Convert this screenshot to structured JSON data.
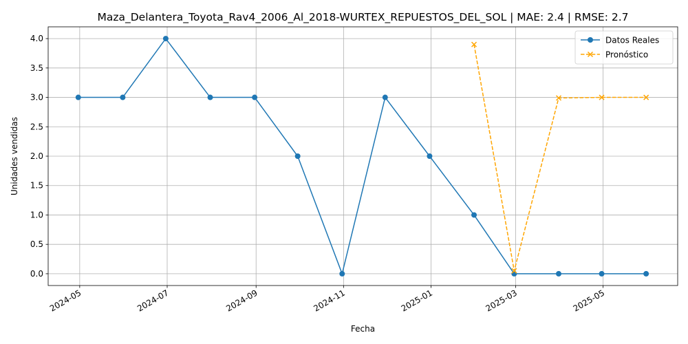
{
  "chart_data": {
    "type": "line",
    "title": "Maza_Delantera_Toyota_Rav4_2006_Al_2018-WURTEX_REPUESTOS_DEL_SOL | MAE: 2.4 | RMSE: 2.7",
    "xlabel": "Fecha",
    "ylabel": "Unidades vendidas",
    "grid": true,
    "legend_position": "top-right",
    "x_ticks": [
      "2024-05",
      "2024-07",
      "2024-09",
      "2024-11",
      "2025-01",
      "2025-03",
      "2025-05"
    ],
    "y_ticks": [
      "0.0",
      "0.5",
      "1.0",
      "1.5",
      "2.0",
      "2.5",
      "3.0",
      "3.5",
      "4.0"
    ],
    "ylim": [
      -0.2,
      4.2
    ],
    "xlim": [
      "2024-04-09",
      "2025-06-22"
    ],
    "series": [
      {
        "name": "Datos Reales",
        "color": "#1f77b4",
        "style": "solid",
        "marker": "circle",
        "points": [
          {
            "x": "2024-04-30",
            "y": 3
          },
          {
            "x": "2024-05-31",
            "y": 3
          },
          {
            "x": "2024-06-30",
            "y": 4
          },
          {
            "x": "2024-07-31",
            "y": 3
          },
          {
            "x": "2024-08-31",
            "y": 3
          },
          {
            "x": "2024-09-30",
            "y": 2
          },
          {
            "x": "2024-10-31",
            "y": 0
          },
          {
            "x": "2024-11-30",
            "y": 3
          },
          {
            "x": "2024-12-31",
            "y": 2
          },
          {
            "x": "2025-01-31",
            "y": 1
          },
          {
            "x": "2025-02-28",
            "y": 0
          },
          {
            "x": "2025-03-31",
            "y": 0
          },
          {
            "x": "2025-04-30",
            "y": 0
          },
          {
            "x": "2025-05-31",
            "y": 0
          }
        ]
      },
      {
        "name": "Pronóstico",
        "color": "#ffa500",
        "style": "dashed",
        "marker": "x",
        "points": [
          {
            "x": "2025-01-31",
            "y": 3.9
          },
          {
            "x": "2025-02-28",
            "y": 0.05
          },
          {
            "x": "2025-03-31",
            "y": 2.99
          },
          {
            "x": "2025-04-30",
            "y": 3.0
          },
          {
            "x": "2025-05-31",
            "y": 3.0
          }
        ]
      }
    ]
  }
}
